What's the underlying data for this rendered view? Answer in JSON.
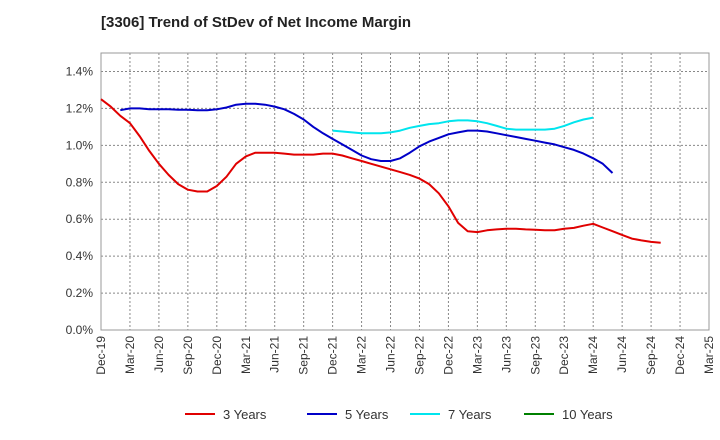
{
  "title": "[3306]  Trend of StDev of Net Income Margin",
  "chart_data": {
    "type": "line",
    "title": "[3306]  Trend of StDev of Net Income Margin",
    "xlabel": "",
    "ylabel": "",
    "ylim": [
      0,
      1.5
    ],
    "y_ticks": [
      "0.0%",
      "0.2%",
      "0.4%",
      "0.6%",
      "0.8%",
      "1.0%",
      "1.2%",
      "1.4%"
    ],
    "x_ticks": [
      "Dec-19",
      "Mar-20",
      "Jun-20",
      "Sep-20",
      "Dec-20",
      "Mar-21",
      "Jun-21",
      "Sep-21",
      "Dec-21",
      "Mar-22",
      "Jun-22",
      "Sep-22",
      "Dec-22",
      "Mar-23",
      "Jun-23",
      "Sep-23",
      "Dec-23",
      "Mar-24",
      "Jun-24",
      "Sep-24",
      "Dec-24",
      "Mar-25"
    ],
    "grid": true,
    "legend_position": "bottom",
    "series": [
      {
        "name": "3 Years",
        "color": "#e00000",
        "values": [
          1.25,
          1.21,
          1.16,
          1.12,
          1.05,
          0.97,
          0.9,
          0.84,
          0.79,
          0.76,
          0.75,
          0.75,
          0.78,
          0.83,
          0.9,
          0.94,
          0.96,
          0.96,
          0.96,
          0.955,
          0.95,
          0.95,
          0.95,
          0.955,
          0.955,
          0.945,
          0.93,
          0.915,
          0.9,
          0.885,
          0.87,
          0.855,
          0.84,
          0.82,
          0.79,
          0.74,
          0.67,
          0.58,
          0.535,
          0.53,
          0.54,
          0.545,
          0.548,
          0.548,
          0.545,
          0.543,
          0.54,
          0.54,
          0.548,
          0.553,
          0.565,
          0.575,
          0.555,
          0.535,
          0.515,
          0.495,
          0.485,
          0.477,
          0.473
        ]
      },
      {
        "name": "5 Years",
        "color": "#0000c8",
        "values": [
          null,
          null,
          1.19,
          1.2,
          1.2,
          1.195,
          1.195,
          1.195,
          1.193,
          1.193,
          1.19,
          1.19,
          1.195,
          1.205,
          1.22,
          1.225,
          1.225,
          1.22,
          1.21,
          1.195,
          1.17,
          1.14,
          1.1,
          1.065,
          1.035,
          1.005,
          0.975,
          0.945,
          0.925,
          0.915,
          0.915,
          0.93,
          0.96,
          0.995,
          1.02,
          1.04,
          1.06,
          1.07,
          1.08,
          1.08,
          1.075,
          1.065,
          1.055,
          1.045,
          1.035,
          1.025,
          1.015,
          1.005,
          0.99,
          0.975,
          0.955,
          0.93,
          0.9,
          0.85
        ]
      },
      {
        "name": "7 Years",
        "color": "#00e5ee",
        "values": [
          null,
          null,
          null,
          null,
          null,
          null,
          null,
          null,
          null,
          null,
          null,
          null,
          null,
          null,
          null,
          null,
          null,
          null,
          null,
          null,
          null,
          null,
          null,
          null,
          1.08,
          1.075,
          1.07,
          1.065,
          1.065,
          1.065,
          1.07,
          1.08,
          1.095,
          1.105,
          1.115,
          1.12,
          1.13,
          1.135,
          1.135,
          1.13,
          1.12,
          1.105,
          1.09,
          1.085,
          1.085,
          1.085,
          1.085,
          1.09,
          1.105,
          1.125,
          1.14,
          1.15
        ]
      },
      {
        "name": "10 Years",
        "color": "#008000",
        "values": []
      }
    ]
  }
}
